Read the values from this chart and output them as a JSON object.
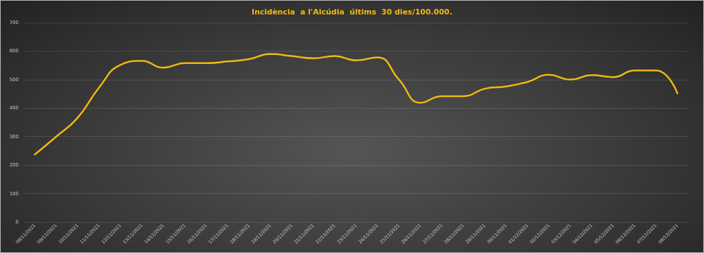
{
  "chart_data": {
    "type": "line",
    "title": "Incidència  a l'Alcúdia  últims  30 dies/100.000.",
    "categories": [
      "08/11/2021",
      "09/11/2021",
      "10/11/2021",
      "11/11/2021",
      "12/11/2021",
      "13/11/2021",
      "14/11/2021",
      "15/11/2021",
      "16/11/2021",
      "17/11/2021",
      "18/11/2021",
      "19/11/2021",
      "20/11/2021",
      "21/11/2021",
      "22/11/2021",
      "23/11/2021",
      "24/11/2021",
      "25/11/2021",
      "26/11/2021",
      "27/11/2021",
      "28/11/2021",
      "29/11/2021",
      "30/11/2021",
      "01/12/2021",
      "02/12/2021",
      "03/12/2021",
      "04/12/2021",
      "05/12/2021",
      "06/12/2021",
      "07/12/2021",
      "08/12/2021"
    ],
    "series": [
      {
        "color": "#f2b90f",
        "values": [
          237,
          300,
          366,
          472,
          552,
          566,
          542,
          558,
          558,
          564,
          572,
          590,
          583,
          575,
          583,
          568,
          578,
          500,
          419,
          442,
          442,
          468,
          476,
          492,
          517,
          500,
          516,
          509,
          532,
          532,
          452
        ]
      }
    ],
    "ylim": [
      0,
      700
    ],
    "yticks": [
      0,
      100,
      200,
      300,
      400,
      500,
      600,
      700
    ],
    "grid": "y",
    "marker": "none",
    "line_style": "solid"
  }
}
